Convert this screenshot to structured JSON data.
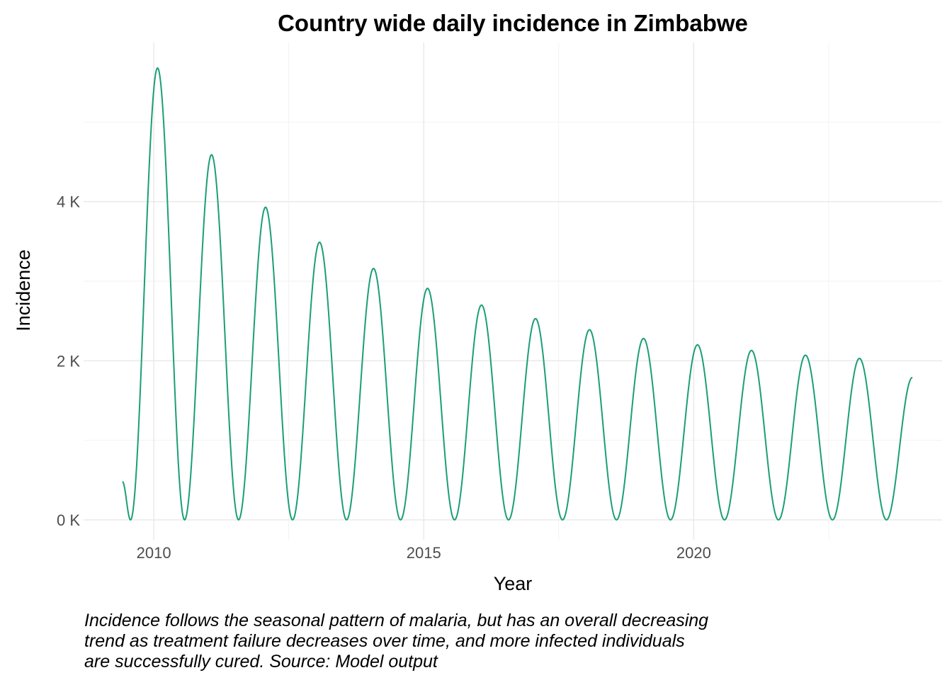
{
  "chart_data": {
    "type": "line",
    "title": "Country wide daily incidence in Zimbabwe",
    "xlabel": "Year",
    "ylabel": "Incidence",
    "x_ticks": [
      2010,
      2015,
      2020
    ],
    "x_tick_labels": [
      "2010",
      "2015",
      "2020"
    ],
    "y_ticks": [
      0,
      2000,
      4000
    ],
    "y_tick_labels": [
      "0 K",
      "2 K",
      "4 K"
    ],
    "xlim": [
      2008.7,
      2024.6
    ],
    "ylim": [
      -250,
      6000
    ],
    "grid": true,
    "line_color": "#1b9e77",
    "start": {
      "x": 2009.42,
      "y": 480
    },
    "end": {
      "x": 2024.05,
      "y": 1790
    },
    "peaks": [
      {
        "x": 2010.07,
        "y": 5680
      },
      {
        "x": 2011.07,
        "y": 4590
      },
      {
        "x": 2012.07,
        "y": 3930
      },
      {
        "x": 2013.07,
        "y": 3490
      },
      {
        "x": 2014.07,
        "y": 3160
      },
      {
        "x": 2015.07,
        "y": 2910
      },
      {
        "x": 2016.07,
        "y": 2700
      },
      {
        "x": 2017.07,
        "y": 2530
      },
      {
        "x": 2018.07,
        "y": 2390
      },
      {
        "x": 2019.07,
        "y": 2280
      },
      {
        "x": 2020.07,
        "y": 2200
      },
      {
        "x": 2021.07,
        "y": 2130
      },
      {
        "x": 2022.07,
        "y": 2070
      },
      {
        "x": 2023.07,
        "y": 2030
      }
    ],
    "troughs": [
      {
        "x": 2009.57,
        "y": 0
      },
      {
        "x": 2010.57,
        "y": 0
      },
      {
        "x": 2011.57,
        "y": 0
      },
      {
        "x": 2012.57,
        "y": 0
      },
      {
        "x": 2013.57,
        "y": 0
      },
      {
        "x": 2014.57,
        "y": 0
      },
      {
        "x": 2015.57,
        "y": 0
      },
      {
        "x": 2016.57,
        "y": 0
      },
      {
        "x": 2017.57,
        "y": 0
      },
      {
        "x": 2018.57,
        "y": 0
      },
      {
        "x": 2019.57,
        "y": 0
      },
      {
        "x": 2020.57,
        "y": 0
      },
      {
        "x": 2021.57,
        "y": 0
      },
      {
        "x": 2022.57,
        "y": 0
      },
      {
        "x": 2023.57,
        "y": 0
      }
    ]
  },
  "caption_lines": [
    "Incidence follows the seasonal pattern of malaria, but has an overall decreasing",
    "trend as treatment failure decreases over time, and more infected individuals",
    "are successfully cured. Source: Model output"
  ]
}
